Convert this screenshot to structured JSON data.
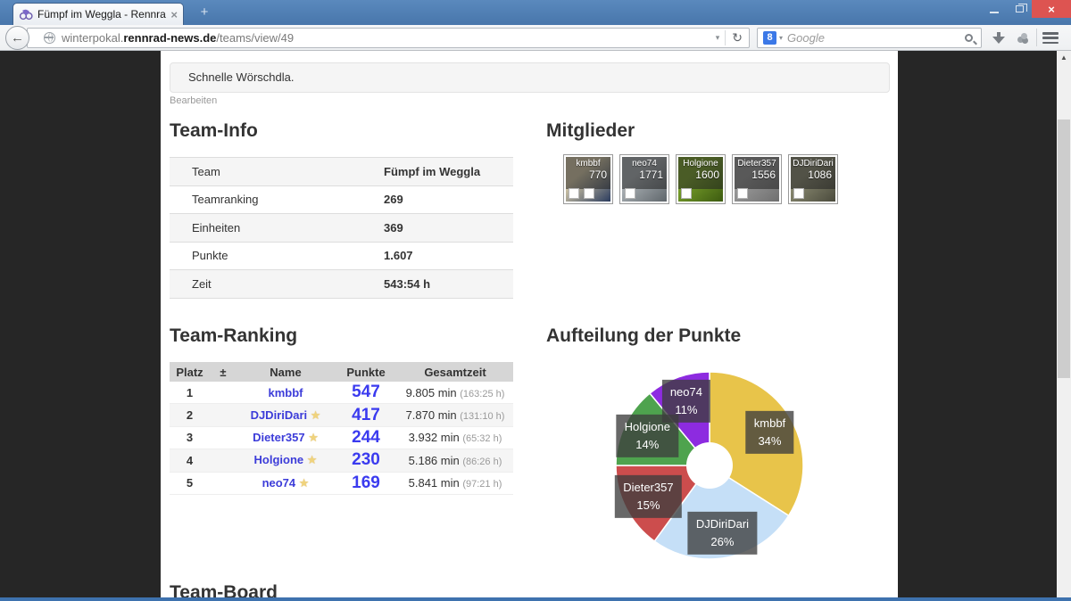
{
  "window": {
    "tab_title": "Fümpf im Weggla - Rennra...",
    "icons": {
      "tab_close": "×",
      "new_tab": "+",
      "close": "×",
      "back": "←",
      "url_caret": "▾",
      "reload": "↻",
      "search_caret": "▾",
      "scroll_up": "▲",
      "google_glyph": "8",
      "star": "★"
    }
  },
  "urlbar": {
    "subdomain": "winterpokal.",
    "domain": "rennrad-news.de",
    "path": "/teams/view/49"
  },
  "search": {
    "placeholder": "Google"
  },
  "page": {
    "description": "Schnelle Wörschdla.",
    "edit_link": "Bearbeiten",
    "team_info": {
      "heading": "Team-Info",
      "rows": [
        {
          "label": "Team",
          "value": "Fümpf im Weggla"
        },
        {
          "label": "Teamranking",
          "value": "269"
        },
        {
          "label": "Einheiten",
          "value": "369"
        },
        {
          "label": "Punkte",
          "value": "1.607"
        },
        {
          "label": "Zeit",
          "value": "543:54 h"
        }
      ]
    },
    "members": {
      "heading": "Mitglieder",
      "items": [
        {
          "name": "kmbbf",
          "points": "770",
          "checkboxes": 2,
          "photo_colors": [
            "#d9cdaa",
            "#2b3c5e"
          ]
        },
        {
          "name": "neo74",
          "points": "1771",
          "checkboxes": 1,
          "photo_colors": [
            "#aeb4b8",
            "#5f666b"
          ]
        },
        {
          "name": "Holgione",
          "points": "1600",
          "checkboxes": 1,
          "photo_colors": [
            "#7ba32c",
            "#3c5a10"
          ]
        },
        {
          "name": "Dieter357",
          "points": "1556",
          "checkboxes": 1,
          "photo_colors": [
            "#9c9c9c",
            "#6f6f6f"
          ]
        },
        {
          "name": "DJDiriDari",
          "points": "1086",
          "checkboxes": 1,
          "photo_colors": [
            "#8d8d74",
            "#4a4a3c"
          ]
        }
      ]
    },
    "ranking": {
      "heading": "Team-Ranking",
      "columns": [
        "Platz",
        "±",
        "Name",
        "Punkte",
        "Gesamtzeit"
      ],
      "rows": [
        {
          "platz": "1",
          "name": "kmbbf",
          "star": false,
          "punkte": "547",
          "zeit": "9.805 min",
          "zeit_h": "(163:25 h)"
        },
        {
          "platz": "2",
          "name": "DJDiriDari",
          "star": true,
          "punkte": "417",
          "zeit": "7.870 min",
          "zeit_h": "(131:10 h)"
        },
        {
          "platz": "3",
          "name": "Dieter357",
          "star": true,
          "punkte": "244",
          "zeit": "3.932 min",
          "zeit_h": "(65:32 h)"
        },
        {
          "platz": "4",
          "name": "Holgione",
          "star": true,
          "punkte": "230",
          "zeit": "5.186 min",
          "zeit_h": "(86:26 h)"
        },
        {
          "platz": "5",
          "name": "neo74",
          "star": true,
          "punkte": "169",
          "zeit": "5.841 min",
          "zeit_h": "(97:21 h)"
        }
      ]
    },
    "board_heading": "Team-Board"
  },
  "chart_data": {
    "type": "pie",
    "title": "Aufteilung der Punkte",
    "labels": [
      "kmbbf",
      "DJDiriDari",
      "Dieter357",
      "Holgione",
      "neo74"
    ],
    "values": [
      34,
      26,
      15,
      14,
      11
    ],
    "unit": "%",
    "colors": [
      "#e8c44a",
      "#c5dff7",
      "#cc4d4d",
      "#4ea34e",
      "#8d2be0"
    ],
    "donut_hole": true,
    "start_angle_deg": 0,
    "direction": "clockwise",
    "legend_position": "on-slice-labels"
  }
}
